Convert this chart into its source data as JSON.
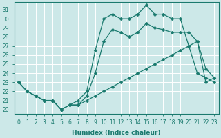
{
  "xlabel": "Humidex (Indice chaleur)",
  "background_color": "#cce8e8",
  "grid_color": "#ffffff",
  "line_color": "#1a7a6e",
  "xlim": [
    -0.5,
    23.5
  ],
  "ylim": [
    19.5,
    31.8
  ],
  "xticks": [
    0,
    1,
    2,
    3,
    4,
    5,
    6,
    7,
    8,
    9,
    10,
    11,
    12,
    13,
    14,
    15,
    16,
    17,
    18,
    19,
    20,
    21,
    22,
    23
  ],
  "yticks": [
    20,
    21,
    22,
    23,
    24,
    25,
    26,
    27,
    28,
    29,
    30,
    31
  ],
  "curve_top": [
    23,
    22,
    21.5,
    21,
    21,
    20,
    20.5,
    21,
    22,
    26.5,
    30,
    30.5,
    30,
    30,
    30.5,
    31.5,
    30.5,
    30.5,
    30.0,
    30,
    27,
    24,
    23.5,
    23
  ],
  "curve_mid": [
    23,
    22,
    21.5,
    21,
    21,
    20,
    20.5,
    20.5,
    21.5,
    24,
    27.5,
    28.8,
    28.5,
    28,
    28.5,
    29.5,
    29,
    28.8,
    28.5,
    28.5,
    28.5,
    27.5,
    24.5,
    23.5
  ],
  "curve_bot": [
    23,
    22,
    21.5,
    21,
    21,
    20,
    20.5,
    20.5,
    21,
    21.5,
    22,
    22.5,
    23,
    23.5,
    24,
    24.5,
    25,
    25.5,
    26,
    26.5,
    27,
    27.5,
    23,
    23.5
  ],
  "marker_size": 2.5,
  "linewidth": 0.9,
  "font_size_ticks": 5.5,
  "font_size_label": 6.5
}
